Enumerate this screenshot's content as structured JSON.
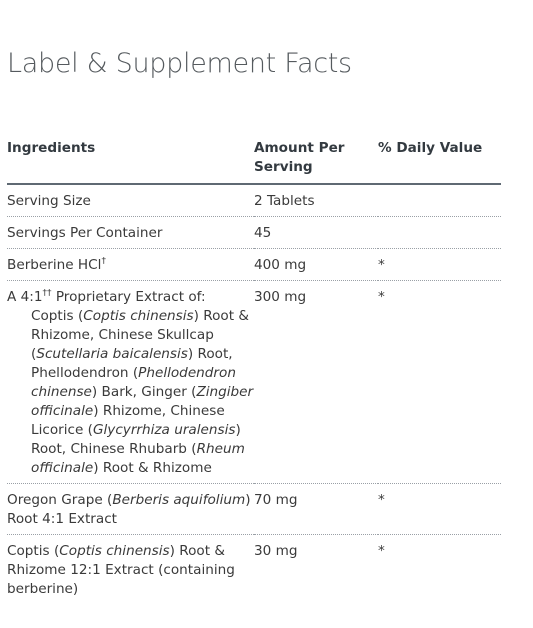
{
  "page": {
    "title": "Label & Supplement Facts"
  },
  "table": {
    "headers": {
      "ingredients": "Ingredients",
      "amount_line1": "Amount Per",
      "amount_line2": "Serving",
      "daily_value": "% Daily Value"
    },
    "rows": [
      {
        "ingredient": "Serving Size",
        "amount": "2 Tablets",
        "daily_value": ""
      },
      {
        "ingredient": "Servings Per Container",
        "amount": "45",
        "daily_value": ""
      },
      {
        "ingredient_text": "Berberine HCl",
        "ingredient_sup": "†",
        "amount": "400 mg",
        "daily_value": "*"
      },
      {
        "ingredient_prefix": "A 4:1",
        "ingredient_sup": "††",
        "ingredient_lead_rest": " Proprietary Extract of:",
        "ingredient_parts": [
          {
            "t": "Coptis ("
          },
          {
            "i": "Coptis chinensis"
          },
          {
            "t": ") Root & Rhizome, Chinese Skullcap ("
          },
          {
            "i": "Scutellaria baicalensis"
          },
          {
            "t": ") Root, Phellodendron ("
          },
          {
            "i": "Phellodendron chinense"
          },
          {
            "t": ") Bark, Ginger ("
          },
          {
            "i": "Zingiber officinale"
          },
          {
            "t": ") Rhizome, Chinese Licorice ("
          },
          {
            "i": "Glycyrrhiza uralensis"
          },
          {
            "t": ") Root, Chinese Rhubarb ("
          },
          {
            "i": "Rheum officinale"
          },
          {
            "t": ") Root & Rhizome"
          }
        ],
        "amount": "300 mg",
        "daily_value": "*"
      },
      {
        "ingredient_parts": [
          {
            "t": " Oregon Grape ("
          },
          {
            "i": "Berberis aquifolium"
          },
          {
            "t": ") Root 4:1 Extract"
          }
        ],
        "amount": "70 mg",
        "daily_value": "*"
      },
      {
        "ingredient_parts": [
          {
            "t": "Coptis ("
          },
          {
            "i": "Coptis chinensis"
          },
          {
            "t": ") Root & Rhizome 12:1 Extract (containing berberine)"
          }
        ],
        "amount": "30 mg",
        "daily_value": "*"
      }
    ]
  }
}
